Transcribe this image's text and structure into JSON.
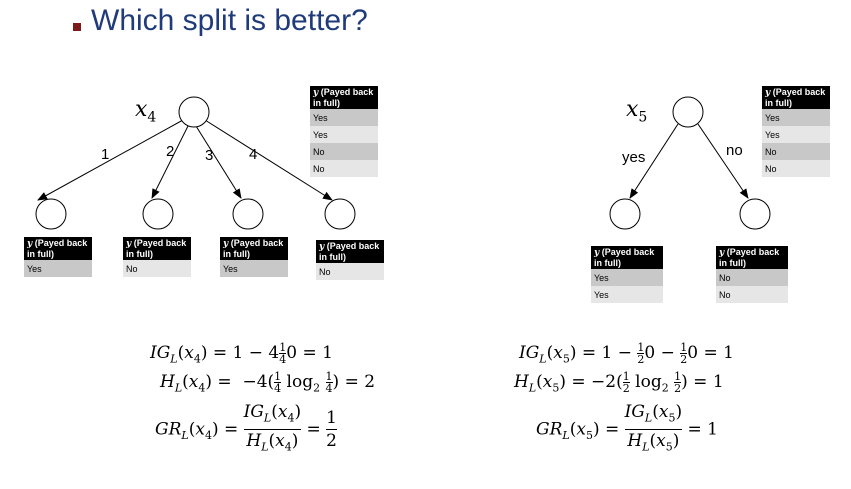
{
  "slide": {
    "title": "Which split is better?",
    "accent_color": "#1f3b7a",
    "bullet_color": "#7a1c1c"
  },
  "table_header": "(Payed back in full)",
  "table_header_var": "y",
  "tree_x4": {
    "root_var": "x",
    "root_sub": "4",
    "edges": [
      "1",
      "2",
      "3",
      "4"
    ],
    "root_table": [
      "Yes",
      "Yes",
      "No",
      "No"
    ],
    "leaf_tables": [
      [
        "Yes"
      ],
      [
        "No"
      ],
      [
        "Yes"
      ],
      [
        "No"
      ]
    ],
    "formulas": {
      "ig": "IG_L(x_4) = 1 − 4·(1/4)·0 = 1",
      "h": "H_L(x_4) = −4((1/4) log2 (1/4)) = 2",
      "gr": "GR_L(x_4) = IG_L(x_4) / H_L(x_4) = 1/2"
    }
  },
  "tree_x5": {
    "root_var": "x",
    "root_sub": "5",
    "edges": [
      "yes",
      "no"
    ],
    "root_table": [
      "Yes",
      "Yes",
      "No",
      "No"
    ],
    "leaf_tables": [
      [
        "Yes",
        "Yes"
      ],
      [
        "No",
        "No"
      ]
    ],
    "formulas": {
      "ig": "IG_L(x_5) = 1 − (1/2)0 − (1/2)0 = 1",
      "h": "H_L(x_5) = −2((1/2) log2 (1/2)) = 1",
      "gr": "GR_L(x_5) = IG_L(x_5) / H_L(x_5) = 1"
    }
  }
}
